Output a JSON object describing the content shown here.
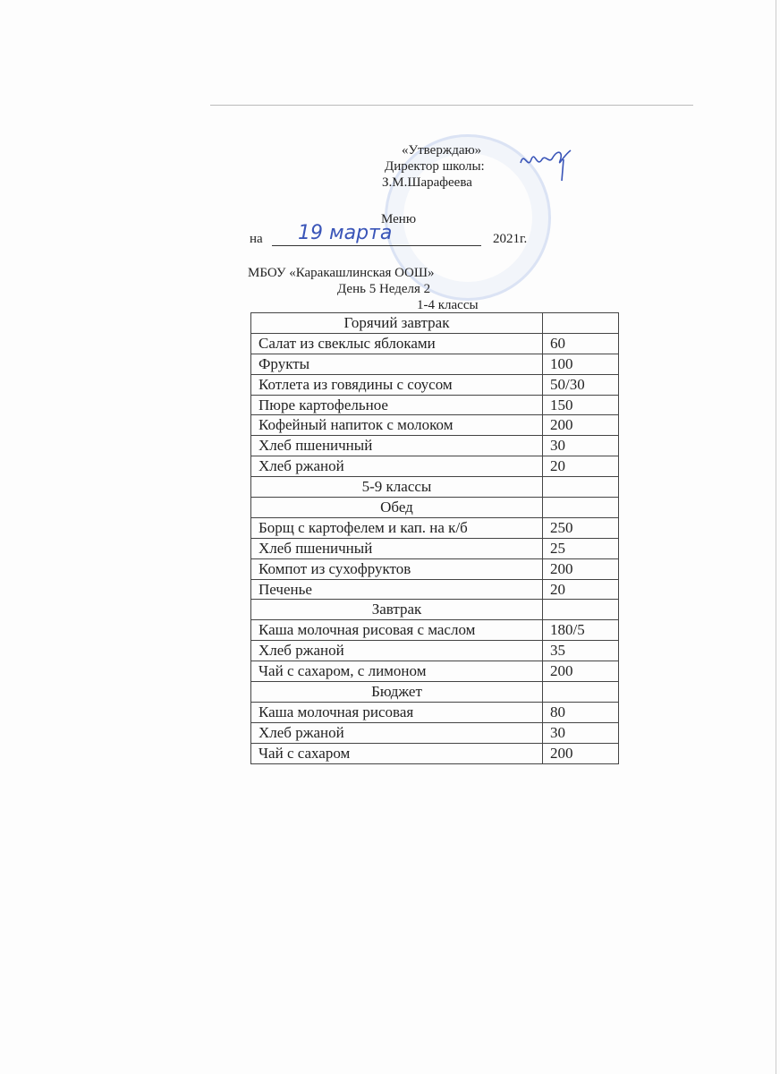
{
  "header": {
    "approve": "«Утверждаю»",
    "director": "Директор школы:",
    "name": "З.М.Шарафеева",
    "menu": "Меню",
    "on": "на",
    "date_handwritten": "19 марта",
    "year": "2021г.",
    "school": "МБОУ «Каракашлинская ООШ»",
    "day_week": "День 5 Неделя  2",
    "grades": "1-4 классы"
  },
  "signature": "Шар",
  "rows": [
    {
      "type": "section",
      "name": "Горячий завтрак",
      "value": ""
    },
    {
      "type": "item",
      "name": "Салат из свеклыс яблоками",
      "value": "60"
    },
    {
      "type": "item",
      "name": "Фрукты",
      "value": "100"
    },
    {
      "type": "item",
      "name": "Котлета из говядины с соусом",
      "value": "50/30"
    },
    {
      "type": "item",
      "name": "Пюре картофельное",
      "value": "150"
    },
    {
      "type": "item",
      "name": "Кофейный напиток с молоком",
      "value": "200"
    },
    {
      "type": "item",
      "name": "Хлеб пшеничный",
      "value": "30"
    },
    {
      "type": "item",
      "name": "Хлеб ржаной",
      "value": "20"
    },
    {
      "type": "section",
      "name": "5-9 классы",
      "value": ""
    },
    {
      "type": "section",
      "name": "Обед",
      "value": ""
    },
    {
      "type": "item",
      "name": "Борщ с картофелем и кап. на к/б",
      "value": "250"
    },
    {
      "type": "item",
      "name": "Хлеб пшеничный",
      "value": "25"
    },
    {
      "type": "item",
      "name": "Компот из сухофруктов",
      "value": "200"
    },
    {
      "type": "item",
      "name": "Печенье",
      "value": "20"
    },
    {
      "type": "section",
      "name": "Завтрак",
      "value": ""
    },
    {
      "type": "item",
      "name": "Каша молочная рисовая с маслом",
      "value": "180/5"
    },
    {
      "type": "item",
      "name": "Хлеб ржаной",
      "value": "35"
    },
    {
      "type": "item",
      "name": "Чай с сахаром, с лимоном",
      "value": "200"
    },
    {
      "type": "section",
      "name": "Бюджет",
      "value": ""
    },
    {
      "type": "item",
      "name": "Каша молочная рисовая",
      "value": "80"
    },
    {
      "type": "item",
      "name": "Хлеб ржаной",
      "value": "30"
    },
    {
      "type": "item",
      "name": "Чай с сахаром",
      "value": "200"
    }
  ]
}
